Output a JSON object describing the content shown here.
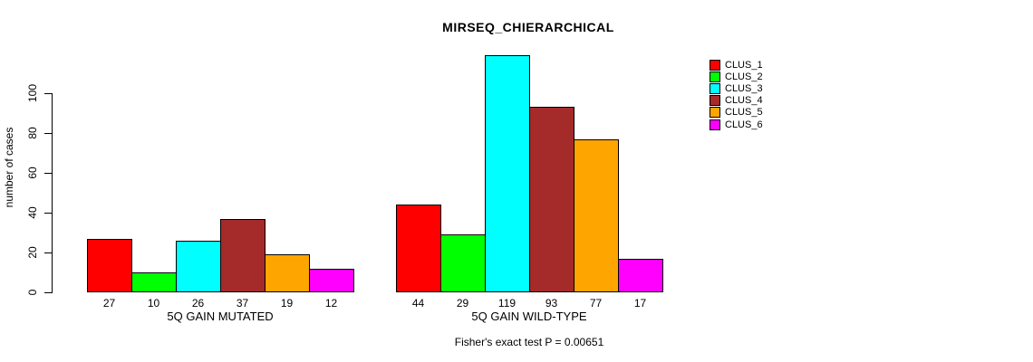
{
  "title": "MIRSEQ_CHIERARCHICAL",
  "footnote": "Fisher's exact test P = 0.00651",
  "chart_data": {
    "type": "bar",
    "title": "MIRSEQ_CHIERARCHICAL",
    "ylabel": "number of cases",
    "xlabel": "",
    "annotation": "Fisher's exact test P = 0.00651",
    "categories": [
      "5Q GAIN MUTATED",
      "5Q GAIN WILD-TYPE"
    ],
    "series": [
      {
        "name": "CLUS_1",
        "color": "#FF0000",
        "values": [
          27,
          44
        ]
      },
      {
        "name": "CLUS_2",
        "color": "#00FF00",
        "values": [
          10,
          29
        ]
      },
      {
        "name": "CLUS_3",
        "color": "#00FFFF",
        "values": [
          26,
          119
        ]
      },
      {
        "name": "CLUS_4",
        "color": "#A52A2A",
        "values": [
          37,
          93
        ]
      },
      {
        "name": "CLUS_5",
        "color": "#FFA500",
        "values": [
          19,
          77
        ]
      },
      {
        "name": "CLUS_6",
        "color": "#FF00FF",
        "values": [
          12,
          17
        ]
      }
    ],
    "groups": [
      {
        "label": "5Q GAIN MUTATED",
        "values": [
          27,
          10,
          26,
          37,
          19,
          12
        ]
      },
      {
        "label": "5Q GAIN WILD-TYPE",
        "values": [
          44,
          29,
          119,
          93,
          77,
          17
        ]
      }
    ],
    "yticks": [
      0,
      20,
      40,
      60,
      80,
      100
    ],
    "ylim": [
      0,
      119
    ],
    "bar_value_labels_shown": true,
    "legend_position": "right",
    "grid": false
  },
  "legend": {
    "items": [
      {
        "label": "CLUS_1",
        "color": "#FF0000"
      },
      {
        "label": "CLUS_2",
        "color": "#00FF00"
      },
      {
        "label": "CLUS_3",
        "color": "#00FFFF"
      },
      {
        "label": "CLUS_4",
        "color": "#A52A2A"
      },
      {
        "label": "CLUS_5",
        "color": "#FFA500"
      },
      {
        "label": "CLUS_6",
        "color": "#FF00FF"
      }
    ]
  }
}
